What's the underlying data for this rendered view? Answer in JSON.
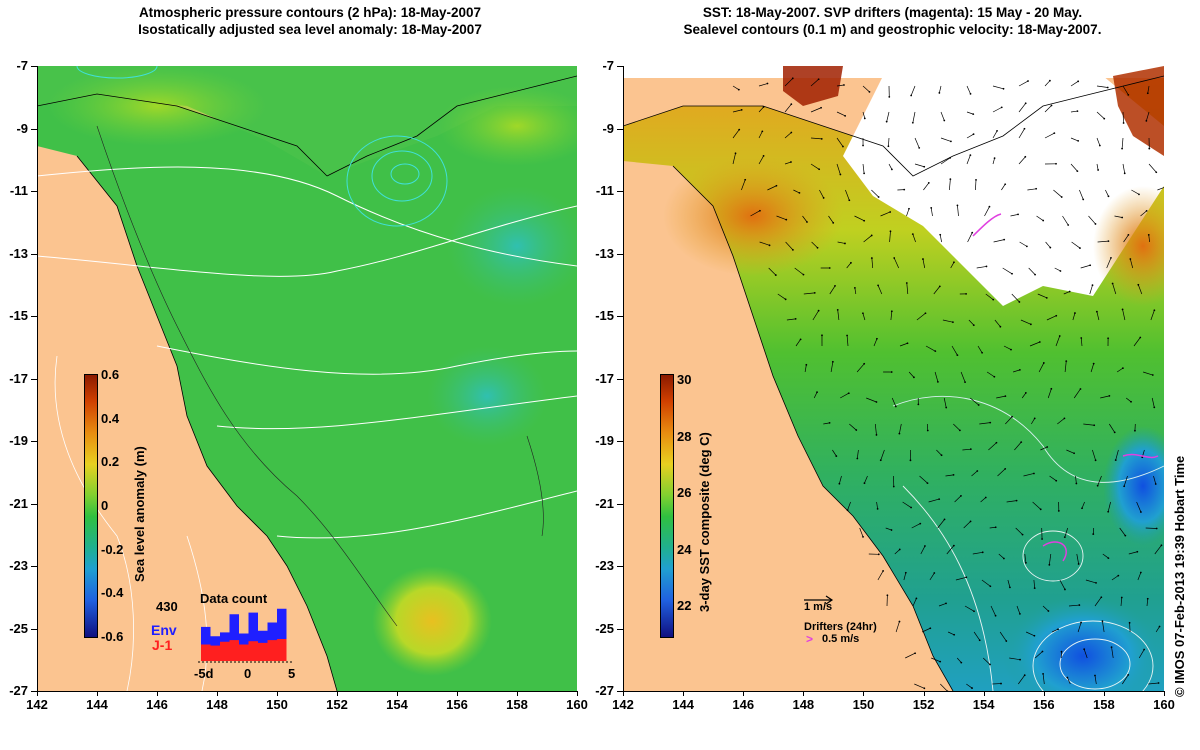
{
  "left_panel": {
    "title_line1": "Atmospheric pressure contours (2 hPa): 18-May-2007",
    "title_line2": "Isostatically adjusted sea level anomaly: 18-May-2007",
    "colorbar": {
      "label": "Sea level anomaly (m)",
      "ticks": [
        "0.6",
        "0.4",
        "0.2",
        "0",
        "-0.2",
        "-0.4",
        "-0.6"
      ],
      "range": [
        -0.6,
        0.6
      ]
    },
    "data_count": {
      "title": "Data count",
      "max_label": "430",
      "series_env": "Env",
      "series_j1": "J-1",
      "x_ticks": [
        "-5d",
        "0",
        "5"
      ],
      "env_color": "#1f1fff",
      "j1_color": "#ff1f1f"
    }
  },
  "right_panel": {
    "title_line1": "SST: 18-May-2007. SVP drifters (magenta): 15 May - 20 May.",
    "title_line2": "Sealevel contours (0.1 m) and geostrophic velocity: 18-May-2007.",
    "colorbar": {
      "label": "3-day SST composite (deg C)",
      "ticks": [
        "30",
        "28",
        "26",
        "24",
        "22"
      ],
      "range": [
        21,
        30.5
      ]
    },
    "scale_arrow_label": "1 m/s",
    "drifters_label": "Drifters (24hr)",
    "drifter_speed_label": "0.5 m/s",
    "drifter_color": "#e040e0"
  },
  "axes": {
    "lat_ticks": [
      "-7",
      "-9",
      "-11",
      "-13",
      "-15",
      "-17",
      "-19",
      "-21",
      "-23",
      "-25",
      "-27"
    ],
    "lon_ticks": [
      "142",
      "144",
      "146",
      "148",
      "150",
      "152",
      "154",
      "156",
      "158",
      "160"
    ]
  },
  "colors": {
    "land": "#fbc490",
    "sea_green": "#3cc83c"
  },
  "credit": "© IMOS 07-Feb-2013 19:39 Hobart Time"
}
